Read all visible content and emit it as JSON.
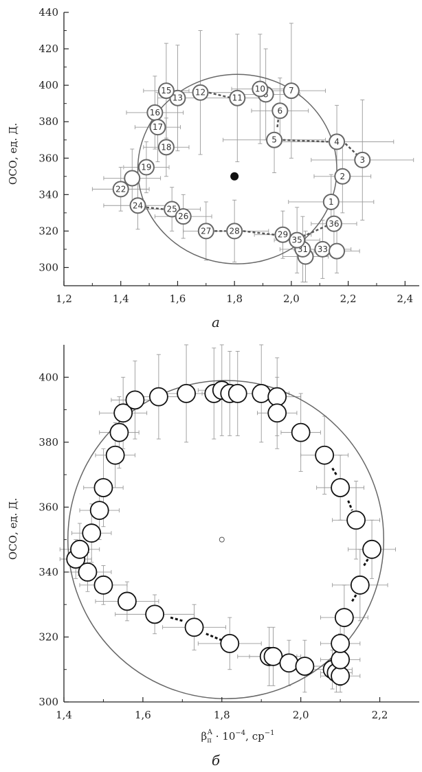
{
  "chart_data": [
    {
      "type": "scatter",
      "panel_label": "а",
      "ylabel": "ОСО, ед. Д.",
      "xlabel": "",
      "xlim": [
        1.2,
        2.45
      ],
      "ylim": [
        290,
        440
      ],
      "x_ticks": [
        1.2,
        1.4,
        1.6,
        1.8,
        2.0,
        2.2,
        2.4
      ],
      "x_tick_labels": [
        "1,2",
        "1,4",
        "1,6",
        "1,8",
        "2,0",
        "2,2",
        "2,4"
      ],
      "y_ticks": [
        300,
        320,
        340,
        360,
        380,
        400,
        420,
        440
      ],
      "y_tick_labels": [
        "300",
        "320",
        "340",
        "360",
        "380",
        "400",
        "420",
        "440"
      ],
      "grid": false,
      "center": {
        "x": 1.8,
        "y": 350
      },
      "fit_circle": {
        "cx": 1.81,
        "cy": 354,
        "rx": 0.35,
        "ry": 52
      },
      "points": [
        {
          "label": "1",
          "x": 2.14,
          "y": 336,
          "xerr": 0.15,
          "yerr": 15
        },
        {
          "label": "2",
          "x": 2.18,
          "y": 350,
          "xerr": 0.1,
          "yerr": 20
        },
        {
          "label": "3",
          "x": 2.25,
          "y": 359,
          "xerr": 0.18,
          "yerr": 33
        },
        {
          "label": "4",
          "x": 2.16,
          "y": 369,
          "xerr": 0.2,
          "yerr": 20
        },
        {
          "label": "5",
          "x": 1.94,
          "y": 370,
          "xerr": 0.18,
          "yerr": 18
        },
        {
          "label": "6",
          "x": 1.96,
          "y": 386,
          "xerr": 0.1,
          "yerr": 18
        },
        {
          "label": "7",
          "x": 2.0,
          "y": 397,
          "xerr": 0.12,
          "yerr": 37
        },
        {
          "label": "8",
          "x": 1.91,
          "y": 395,
          "xerr": 0.12,
          "yerr": 25
        },
        {
          "label": "10",
          "x": 1.89,
          "y": 398,
          "xerr": 0.1,
          "yerr": 30
        },
        {
          "label": "11",
          "x": 1.81,
          "y": 393,
          "xerr": 0.12,
          "yerr": 35
        },
        {
          "label": "12",
          "x": 1.68,
          "y": 396,
          "xerr": 0.12,
          "yerr": 34
        },
        {
          "label": "13",
          "x": 1.6,
          "y": 393,
          "xerr": 0.07,
          "yerr": 29
        },
        {
          "label": "15",
          "x": 1.56,
          "y": 397,
          "xerr": 0.08,
          "yerr": 26
        },
        {
          "label": "16",
          "x": 1.52,
          "y": 385,
          "xerr": 0.1,
          "yerr": 20
        },
        {
          "label": "17",
          "x": 1.53,
          "y": 377,
          "xerr": 0.08,
          "yerr": 19
        },
        {
          "label": "18",
          "x": 1.56,
          "y": 366,
          "xerr": 0.08,
          "yerr": 16
        },
        {
          "label": "19",
          "x": 1.49,
          "y": 355,
          "xerr": 0.08,
          "yerr": 14
        },
        {
          "label": "",
          "x": 1.44,
          "y": 349,
          "xerr": 0.1,
          "yerr": 16
        },
        {
          "label": "22",
          "x": 1.4,
          "y": 343,
          "xerr": 0.1,
          "yerr": 12
        },
        {
          "label": "24",
          "x": 1.46,
          "y": 334,
          "xerr": 0.12,
          "yerr": 13
        },
        {
          "label": "25",
          "x": 1.58,
          "y": 332,
          "xerr": 0.1,
          "yerr": 12
        },
        {
          "label": "26",
          "x": 1.62,
          "y": 328,
          "xerr": 0.1,
          "yerr": 12
        },
        {
          "label": "27",
          "x": 1.7,
          "y": 320,
          "xerr": 0.08,
          "yerr": 16
        },
        {
          "label": "28",
          "x": 1.8,
          "y": 320,
          "xerr": 0.12,
          "yerr": 17
        },
        {
          "label": "29",
          "x": 1.97,
          "y": 318,
          "xerr": 0.1,
          "yerr": 13
        },
        {
          "label": "",
          "x": 2.05,
          "y": 306,
          "xerr": 0.08,
          "yerr": 14
        },
        {
          "label": "31",
          "x": 2.04,
          "y": 310,
          "xerr": 0.08,
          "yerr": 18
        },
        {
          "label": "33",
          "x": 2.11,
          "y": 310,
          "xerr": 0.1,
          "yerr": 16
        },
        {
          "label": "",
          "x": 2.16,
          "y": 309,
          "xerr": 0.08,
          "yerr": 12
        },
        {
          "label": "35",
          "x": 2.02,
          "y": 315,
          "xerr": 0.08,
          "yerr": 18
        },
        {
          "label": "36",
          "x": 2.15,
          "y": 324,
          "xerr": 0.08,
          "yerr": 12
        }
      ],
      "dashes": [
        [
          [
            1.71,
            396
          ],
          [
            1.79,
            393
          ]
        ],
        [
          [
            1.96,
            389
          ],
          [
            1.95,
            376
          ]
        ],
        [
          [
            1.97,
            370
          ],
          [
            2.13,
            369
          ]
        ],
        [
          [
            2.19,
            368
          ],
          [
            2.23,
            362
          ]
        ],
        [
          [
            1.49,
            333
          ],
          [
            1.55,
            332
          ]
        ],
        [
          [
            1.73,
            320
          ],
          [
            1.77,
            320
          ]
        ],
        [
          [
            1.83,
            320
          ],
          [
            1.94,
            318
          ]
        ],
        [
          [
            2.04,
            317
          ],
          [
            2.14,
            324
          ]
        ]
      ]
    },
    {
      "type": "scatter",
      "panel_label": "б",
      "ylabel": "ОСО, ед. Д.",
      "xlabel": "β",
      "xlabel_sub": "π",
      "xlabel_sup": "A",
      "xlabel_rest": " · 10",
      "xlabel_exp": "−4",
      "xlabel_unit": ",  ср",
      "xlabel_unit_exp": "−1",
      "xlim": [
        1.4,
        2.3
      ],
      "ylim": [
        300,
        410
      ],
      "x_ticks": [
        1.4,
        1.6,
        1.8,
        2.0,
        2.2
      ],
      "x_tick_labels": [
        "1,4",
        "1,6",
        "1,8",
        "2,0",
        "2,2"
      ],
      "y_ticks": [
        300,
        320,
        340,
        360,
        380,
        400
      ],
      "y_tick_labels": [
        "300",
        "320",
        "340",
        "360",
        "380",
        "400"
      ],
      "grid": false,
      "center": {
        "x": 1.8,
        "y": 350
      },
      "fit_circle": {
        "cx": 1.81,
        "cy": 350,
        "rx": 0.4,
        "ry": 49
      },
      "points": [
        {
          "x": 1.43,
          "y": 344,
          "xerr": 0.04,
          "yerr": 6
        },
        {
          "x": 1.44,
          "y": 347,
          "xerr": 0.05,
          "yerr": 8
        },
        {
          "x": 1.46,
          "y": 340,
          "xerr": 0.06,
          "yerr": 6
        },
        {
          "x": 1.47,
          "y": 352,
          "xerr": 0.05,
          "yerr": 9
        },
        {
          "x": 1.49,
          "y": 359,
          "xerr": 0.05,
          "yerr": 9
        },
        {
          "x": 1.5,
          "y": 366,
          "xerr": 0.05,
          "yerr": 12
        },
        {
          "x": 1.5,
          "y": 336,
          "xerr": 0.06,
          "yerr": 6
        },
        {
          "x": 1.53,
          "y": 376,
          "xerr": 0.05,
          "yerr": 10
        },
        {
          "x": 1.54,
          "y": 383,
          "xerr": 0.05,
          "yerr": 11
        },
        {
          "x": 1.55,
          "y": 389,
          "xerr": 0.06,
          "yerr": 11
        },
        {
          "x": 1.56,
          "y": 331,
          "xerr": 0.08,
          "yerr": 6
        },
        {
          "x": 1.58,
          "y": 393,
          "xerr": 0.06,
          "yerr": 12
        },
        {
          "x": 1.63,
          "y": 327,
          "xerr": 0.1,
          "yerr": 6
        },
        {
          "x": 1.64,
          "y": 394,
          "xerr": 0.06,
          "yerr": 13
        },
        {
          "x": 1.71,
          "y": 395,
          "xerr": 0.07,
          "yerr": 15
        },
        {
          "x": 1.73,
          "y": 323,
          "xerr": 0.08,
          "yerr": 7
        },
        {
          "x": 1.78,
          "y": 395,
          "xerr": 0.06,
          "yerr": 14
        },
        {
          "x": 1.8,
          "y": 396,
          "xerr": 0.06,
          "yerr": 14
        },
        {
          "x": 1.82,
          "y": 395,
          "xerr": 0.07,
          "yerr": 13
        },
        {
          "x": 1.82,
          "y": 318,
          "xerr": 0.08,
          "yerr": 8
        },
        {
          "x": 1.84,
          "y": 395,
          "xerr": 0.07,
          "yerr": 13
        },
        {
          "x": 1.9,
          "y": 395,
          "xerr": 0.07,
          "yerr": 15
        },
        {
          "x": 1.92,
          "y": 314,
          "xerr": 0.08,
          "yerr": 9
        },
        {
          "x": 1.93,
          "y": 314,
          "xerr": 0.06,
          "yerr": 9
        },
        {
          "x": 1.94,
          "y": 394,
          "xerr": 0.06,
          "yerr": 12
        },
        {
          "x": 1.94,
          "y": 389,
          "xerr": 0.05,
          "yerr": 11
        },
        {
          "x": 1.97,
          "y": 312,
          "xerr": 0.06,
          "yerr": 7
        },
        {
          "x": 2.0,
          "y": 383,
          "xerr": 0.05,
          "yerr": 12
        },
        {
          "x": 2.01,
          "y": 311,
          "xerr": 0.06,
          "yerr": 8
        },
        {
          "x": 2.06,
          "y": 376,
          "xerr": 0.06,
          "yerr": 12
        },
        {
          "x": 2.08,
          "y": 310,
          "xerr": 0.05,
          "yerr": 6
        },
        {
          "x": 2.09,
          "y": 309,
          "xerr": 0.04,
          "yerr": 6
        },
        {
          "x": 2.1,
          "y": 308,
          "xerr": 0.05,
          "yerr": 5
        },
        {
          "x": 2.1,
          "y": 366,
          "xerr": 0.06,
          "yerr": 10
        },
        {
          "x": 2.1,
          "y": 313,
          "xerr": 0.05,
          "yerr": 8
        },
        {
          "x": 2.1,
          "y": 318,
          "xerr": 0.05,
          "yerr": 10
        },
        {
          "x": 2.11,
          "y": 326,
          "xerr": 0.06,
          "yerr": 10
        },
        {
          "x": 2.14,
          "y": 356,
          "xerr": 0.06,
          "yerr": 12
        },
        {
          "x": 2.15,
          "y": 336,
          "xerr": 0.07,
          "yerr": 11
        },
        {
          "x": 2.18,
          "y": 347,
          "xerr": 0.06,
          "yerr": 9
        }
      ],
      "dashes": [
        [
          [
            1.76,
            321
          ],
          [
            1.8,
            319
          ]
        ],
        [
          [
            1.67,
            326
          ],
          [
            1.7,
            325
          ]
        ],
        [
          [
            2.08,
            372
          ],
          [
            2.09,
            370
          ]
        ],
        [
          [
            2.12,
            362
          ],
          [
            2.13,
            359
          ]
        ],
        [
          [
            2.16,
            342
          ],
          [
            2.17,
            344
          ]
        ],
        [
          [
            2.13,
            331
          ],
          [
            2.14,
            333
          ]
        ]
      ]
    }
  ]
}
